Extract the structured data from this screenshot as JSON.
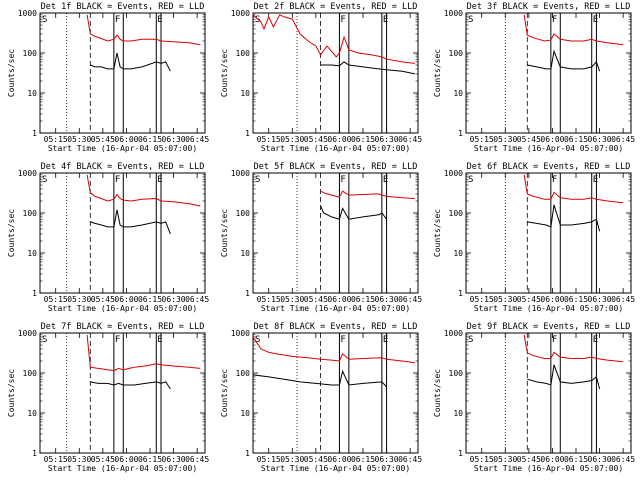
{
  "colors": {
    "events": "#000000",
    "lld": "#dd0000",
    "frame": "#000000"
  },
  "chart_data": [
    {
      "type": "line",
      "title": "Det 1f BLACK = Events, RED = LLD",
      "xlabel": "Start Time (16-Apr-04 05:07:00)",
      "ylabel": "Counts/sec",
      "yscale": "log",
      "ylim": [
        1,
        1000
      ],
      "yticks": [
        "1",
        "10",
        "100",
        "1000"
      ],
      "xlim": [
        "05:05",
        "06:50"
      ],
      "xticks": [
        "05:15",
        "05:30",
        "05:45",
        "06:00",
        "06:15",
        "06:30",
        "06:45"
      ],
      "markers": {
        "dotted": "05:22",
        "dashed": "05:37",
        "F": [
          "05:52",
          "05:58"
        ],
        "E": [
          "06:19",
          "06:22"
        ]
      },
      "flags": [
        "S",
        "F",
        "E"
      ],
      "series": [
        {
          "name": "Events",
          "x": [
            "05:37",
            "05:40",
            "05:44",
            "05:48",
            "05:52",
            "05:54",
            "05:56",
            "05:58",
            "06:03",
            "06:10",
            "06:19",
            "06:22",
            "06:25",
            "06:28"
          ],
          "y": [
            50,
            45,
            45,
            40,
            40,
            100,
            45,
            40,
            40,
            45,
            60,
            55,
            60,
            35
          ]
        },
        {
          "name": "LLD",
          "x": [
            "05:35",
            "05:37",
            "05:40",
            "05:44",
            "05:48",
            "05:52",
            "05:54",
            "05:56",
            "05:58",
            "06:03",
            "06:10",
            "06:19",
            "06:22",
            "06:30",
            "06:40",
            "06:47"
          ],
          "y": [
            900,
            300,
            260,
            230,
            200,
            220,
            280,
            220,
            200,
            200,
            220,
            220,
            200,
            190,
            180,
            160
          ]
        }
      ]
    },
    {
      "type": "line",
      "title": "Det 2f BLACK = Events, RED = LLD",
      "xlabel": "Start Time (16-Apr-04 05:07:00)",
      "ylabel": "Counts/sec",
      "yscale": "log",
      "ylim": [
        1,
        1000
      ],
      "yticks": [
        "1",
        "10",
        "100",
        "1000"
      ],
      "xlim": [
        "05:05",
        "06:50"
      ],
      "xticks": [
        "05:15",
        "05:30",
        "05:45",
        "06:00",
        "06:15",
        "06:30",
        "06:45"
      ],
      "markers": {
        "dotted": "05:33",
        "dashed": "05:48",
        "F": [
          "06:00",
          "06:06"
        ],
        "E": [
          "06:27",
          "06:30"
        ]
      },
      "flags": [
        "S",
        "F",
        "E"
      ],
      "series": [
        {
          "name": "Events",
          "x": [
            "05:48",
            "05:55",
            "06:00",
            "06:03",
            "06:06",
            "06:15",
            "06:25",
            "06:30",
            "06:40",
            "06:48"
          ],
          "y": [
            50,
            50,
            48,
            60,
            50,
            45,
            40,
            38,
            35,
            30
          ]
        },
        {
          "name": "LLD",
          "x": [
            "05:05",
            "05:10",
            "05:12",
            "05:15",
            "05:18",
            "05:22",
            "05:25",
            "05:30",
            "05:35",
            "05:40",
            "05:45",
            "05:48",
            "05:52",
            "05:55",
            "05:58",
            "06:00",
            "06:03",
            "06:06",
            "06:12",
            "06:20",
            "06:27",
            "06:30",
            "06:40",
            "06:48"
          ],
          "y": [
            900,
            600,
            400,
            800,
            450,
            900,
            800,
            700,
            300,
            200,
            150,
            90,
            150,
            110,
            80,
            100,
            250,
            120,
            100,
            90,
            80,
            70,
            60,
            55
          ]
        }
      ]
    },
    {
      "type": "line",
      "title": "Det 3f BLACK = Events, RED = LLD",
      "xlabel": "Start Time (16-Apr-04 05:07:00)",
      "ylabel": "Counts/sec",
      "yscale": "log",
      "ylim": [
        1,
        1000
      ],
      "yticks": [
        "1",
        "10",
        "100",
        "1000"
      ],
      "xlim": [
        "05:05",
        "06:50"
      ],
      "xticks": [
        "05:15",
        "05:30",
        "05:45",
        "06:00",
        "06:15",
        "06:30",
        "06:45"
      ],
      "markers": {
        "dotted": "05:30",
        "dashed": "05:44",
        "F": [
          "05:59",
          "06:05"
        ],
        "E": [
          "06:25",
          "06:28"
        ]
      },
      "flags": [
        "S",
        "F",
        "E"
      ],
      "series": [
        {
          "name": "Events",
          "x": [
            "05:44",
            "05:50",
            "05:56",
            "05:59",
            "06:01",
            "06:05",
            "06:12",
            "06:20",
            "06:25",
            "06:28",
            "06:30"
          ],
          "y": [
            50,
            45,
            40,
            40,
            110,
            45,
            40,
            40,
            45,
            60,
            35
          ]
        },
        {
          "name": "LLD",
          "x": [
            "05:42",
            "05:44",
            "05:48",
            "05:55",
            "05:59",
            "06:01",
            "06:05",
            "06:12",
            "06:20",
            "06:25",
            "06:28",
            "06:35",
            "06:45"
          ],
          "y": [
            900,
            280,
            240,
            200,
            210,
            300,
            220,
            200,
            200,
            220,
            200,
            180,
            160
          ]
        }
      ]
    },
    {
      "type": "line",
      "title": "Det 4f BLACK = Events, RED = LLD",
      "xlabel": "Start Time (16-Apr-04 05:07:00)",
      "ylabel": "Counts/sec",
      "yscale": "log",
      "ylim": [
        1,
        1000
      ],
      "yticks": [
        "1",
        "10",
        "100",
        "1000"
      ],
      "xlim": [
        "05:05",
        "06:50"
      ],
      "xticks": [
        "05:15",
        "05:30",
        "05:45",
        "06:00",
        "06:15",
        "06:30",
        "06:45"
      ],
      "markers": {
        "dotted": "05:22",
        "dashed": "05:37",
        "F": [
          "05:52",
          "05:58"
        ],
        "E": [
          "06:19",
          "06:22"
        ]
      },
      "flags": [
        "S",
        "F",
        "E"
      ],
      "series": [
        {
          "name": "Events",
          "x": [
            "05:37",
            "05:40",
            "05:44",
            "05:48",
            "05:52",
            "05:54",
            "05:56",
            "05:58",
            "06:03",
            "06:10",
            "06:19",
            "06:22",
            "06:25",
            "06:28"
          ],
          "y": [
            60,
            55,
            50,
            45,
            45,
            120,
            50,
            45,
            45,
            50,
            60,
            55,
            60,
            30
          ]
        },
        {
          "name": "LLD",
          "x": [
            "05:35",
            "05:37",
            "05:40",
            "05:44",
            "05:48",
            "05:52",
            "05:54",
            "05:56",
            "05:58",
            "06:03",
            "06:10",
            "06:19",
            "06:22",
            "06:30",
            "06:40",
            "06:47"
          ],
          "y": [
            900,
            320,
            260,
            230,
            200,
            220,
            290,
            230,
            210,
            200,
            220,
            230,
            200,
            190,
            170,
            150
          ]
        }
      ]
    },
    {
      "type": "line",
      "title": "Det 5f BLACK = Events, RED = LLD",
      "xlabel": "Start Time (16-Apr-04 05:07:00)",
      "ylabel": "Counts/sec",
      "yscale": "log",
      "ylim": [
        1,
        1000
      ],
      "yticks": [
        "1",
        "10",
        "100",
        "1000"
      ],
      "xlim": [
        "05:05",
        "06:50"
      ],
      "xticks": [
        "05:15",
        "05:30",
        "05:45",
        "06:00",
        "06:15",
        "06:30",
        "06:45"
      ],
      "markers": {
        "dotted": "05:33",
        "dashed": "05:48",
        "F": [
          "06:00",
          "06:06"
        ],
        "E": [
          "06:27",
          "06:30"
        ]
      },
      "flags": [
        "S",
        "F",
        "E"
      ],
      "series": [
        {
          "name": "Events",
          "x": [
            "05:48",
            "05:50",
            "05:55",
            "06:00",
            "06:02",
            "06:06",
            "06:15",
            "06:25",
            "06:27",
            "06:30"
          ],
          "y": [
            150,
            100,
            80,
            70,
            130,
            70,
            80,
            90,
            100,
            70
          ]
        },
        {
          "name": "LLD",
          "x": [
            "05:48",
            "05:52",
            "05:58",
            "06:00",
            "06:02",
            "06:06",
            "06:15",
            "06:25",
            "06:27",
            "06:30",
            "06:40",
            "06:48"
          ],
          "y": [
            350,
            300,
            260,
            250,
            350,
            280,
            290,
            300,
            280,
            260,
            240,
            230
          ]
        }
      ]
    },
    {
      "type": "line",
      "title": "Det 6f BLACK = Events, RED = LLD",
      "xlabel": "Start Time (16-Apr-04 05:07:00)",
      "ylabel": "Counts/sec",
      "yscale": "log",
      "ylim": [
        1,
        1000
      ],
      "yticks": [
        "1",
        "10",
        "100",
        "1000"
      ],
      "xlim": [
        "05:05",
        "06:50"
      ],
      "xticks": [
        "05:15",
        "05:30",
        "05:45",
        "06:00",
        "06:15",
        "06:30",
        "06:45"
      ],
      "markers": {
        "dotted": "05:30",
        "dashed": "05:44",
        "F": [
          "05:59",
          "06:05"
        ],
        "E": [
          "06:25",
          "06:28"
        ]
      },
      "flags": [
        "S",
        "F",
        "E"
      ],
      "series": [
        {
          "name": "Events",
          "x": [
            "05:44",
            "05:50",
            "05:56",
            "05:59",
            "06:01",
            "06:05",
            "06:12",
            "06:20",
            "06:25",
            "06:28",
            "06:30"
          ],
          "y": [
            60,
            55,
            50,
            45,
            160,
            50,
            50,
            55,
            60,
            70,
            35
          ]
        },
        {
          "name": "LLD",
          "x": [
            "05:42",
            "05:44",
            "05:48",
            "05:55",
            "05:59",
            "06:01",
            "06:05",
            "06:12",
            "06:20",
            "06:25",
            "06:28",
            "06:35",
            "06:45"
          ],
          "y": [
            900,
            300,
            260,
            220,
            220,
            330,
            240,
            220,
            220,
            240,
            220,
            200,
            180
          ]
        }
      ]
    },
    {
      "type": "line",
      "title": "Det 7f BLACK = Events, RED = LLD",
      "xlabel": "Start Time (16-Apr-04 05:07:00)",
      "ylabel": "Counts/sec",
      "yscale": "log",
      "ylim": [
        1,
        1000
      ],
      "yticks": [
        "1",
        "10",
        "100",
        "1000"
      ],
      "xlim": [
        "05:05",
        "06:50"
      ],
      "xticks": [
        "05:15",
        "05:30",
        "05:45",
        "06:00",
        "06:15",
        "06:30",
        "06:45"
      ],
      "markers": {
        "dotted": "05:22",
        "dashed": "05:37",
        "F": [
          "05:52",
          "05:58"
        ],
        "E": [
          "06:19",
          "06:22"
        ]
      },
      "flags": [
        "S",
        "F",
        "E"
      ],
      "series": [
        {
          "name": "Events",
          "x": [
            "05:37",
            "05:42",
            "05:48",
            "05:52",
            "05:55",
            "05:58",
            "06:05",
            "06:12",
            "06:19",
            "06:22",
            "06:25",
            "06:28"
          ],
          "y": [
            60,
            55,
            55,
            50,
            55,
            50,
            50,
            55,
            60,
            55,
            60,
            40
          ]
        },
        {
          "name": "LLD",
          "x": [
            "05:35",
            "05:37",
            "05:42",
            "05:48",
            "05:52",
            "05:55",
            "05:58",
            "06:05",
            "06:12",
            "06:19",
            "06:22",
            "06:30",
            "06:40",
            "06:47"
          ],
          "y": [
            900,
            140,
            130,
            120,
            115,
            130,
            120,
            140,
            150,
            170,
            160,
            150,
            140,
            130
          ]
        }
      ]
    },
    {
      "type": "line",
      "title": "Det 8f BLACK = Events, RED = LLD",
      "xlabel": "Start Time (16-Apr-04 05:07:00)",
      "ylabel": "Counts/sec",
      "yscale": "log",
      "ylim": [
        1,
        1000
      ],
      "yticks": [
        "1",
        "10",
        "100",
        "1000"
      ],
      "xlim": [
        "05:05",
        "06:50"
      ],
      "xticks": [
        "05:15",
        "05:30",
        "05:45",
        "06:00",
        "06:15",
        "06:30",
        "06:45"
      ],
      "markers": {
        "dotted": "05:33",
        "dashed": "05:48",
        "F": [
          "06:00",
          "06:06"
        ],
        "E": [
          "06:27",
          "06:30"
        ]
      },
      "flags": [
        "S",
        "F",
        "E"
      ],
      "series": [
        {
          "name": "Events",
          "x": [
            "05:05",
            "05:15",
            "05:25",
            "05:35",
            "05:45",
            "05:55",
            "06:00",
            "06:02",
            "06:06",
            "06:15",
            "06:27",
            "06:30"
          ],
          "y": [
            90,
            80,
            70,
            60,
            55,
            50,
            50,
            110,
            50,
            55,
            60,
            45
          ]
        },
        {
          "name": "LLD",
          "x": [
            "05:05",
            "05:10",
            "05:15",
            "05:20",
            "05:30",
            "05:40",
            "05:48",
            "05:55",
            "06:00",
            "06:02",
            "06:06",
            "06:15",
            "06:27",
            "06:30",
            "06:40",
            "06:48"
          ],
          "y": [
            800,
            400,
            330,
            300,
            260,
            240,
            220,
            210,
            200,
            300,
            220,
            230,
            240,
            220,
            200,
            180
          ]
        }
      ]
    },
    {
      "type": "line",
      "title": "Det 9f BLACK = Events, RED = LLD",
      "xlabel": "Start Time (16-Apr-04 05:07:00)",
      "ylabel": "Counts/sec",
      "yscale": "log",
      "ylim": [
        1,
        1000
      ],
      "yticks": [
        "1",
        "10",
        "100",
        "1000"
      ],
      "xlim": [
        "05:05",
        "06:50"
      ],
      "xticks": [
        "05:15",
        "05:30",
        "05:45",
        "06:00",
        "06:15",
        "06:30",
        "06:45"
      ],
      "markers": {
        "dotted": "05:30",
        "dashed": "05:44",
        "F": [
          "05:59",
          "06:05"
        ],
        "E": [
          "06:25",
          "06:28"
        ]
      },
      "flags": [
        "S",
        "F",
        "E"
      ],
      "series": [
        {
          "name": "Events",
          "x": [
            "05:44",
            "05:50",
            "05:56",
            "05:59",
            "06:01",
            "06:05",
            "06:12",
            "06:20",
            "06:25",
            "06:28",
            "06:30"
          ],
          "y": [
            70,
            60,
            55,
            50,
            160,
            60,
            55,
            60,
            65,
            80,
            40
          ]
        },
        {
          "name": "LLD",
          "x": [
            "05:42",
            "05:44",
            "05:48",
            "05:55",
            "05:59",
            "06:01",
            "06:05",
            "06:12",
            "06:20",
            "06:25",
            "06:28",
            "06:35",
            "06:45"
          ],
          "y": [
            900,
            320,
            270,
            230,
            230,
            330,
            250,
            230,
            230,
            250,
            230,
            210,
            190
          ]
        }
      ]
    }
  ]
}
